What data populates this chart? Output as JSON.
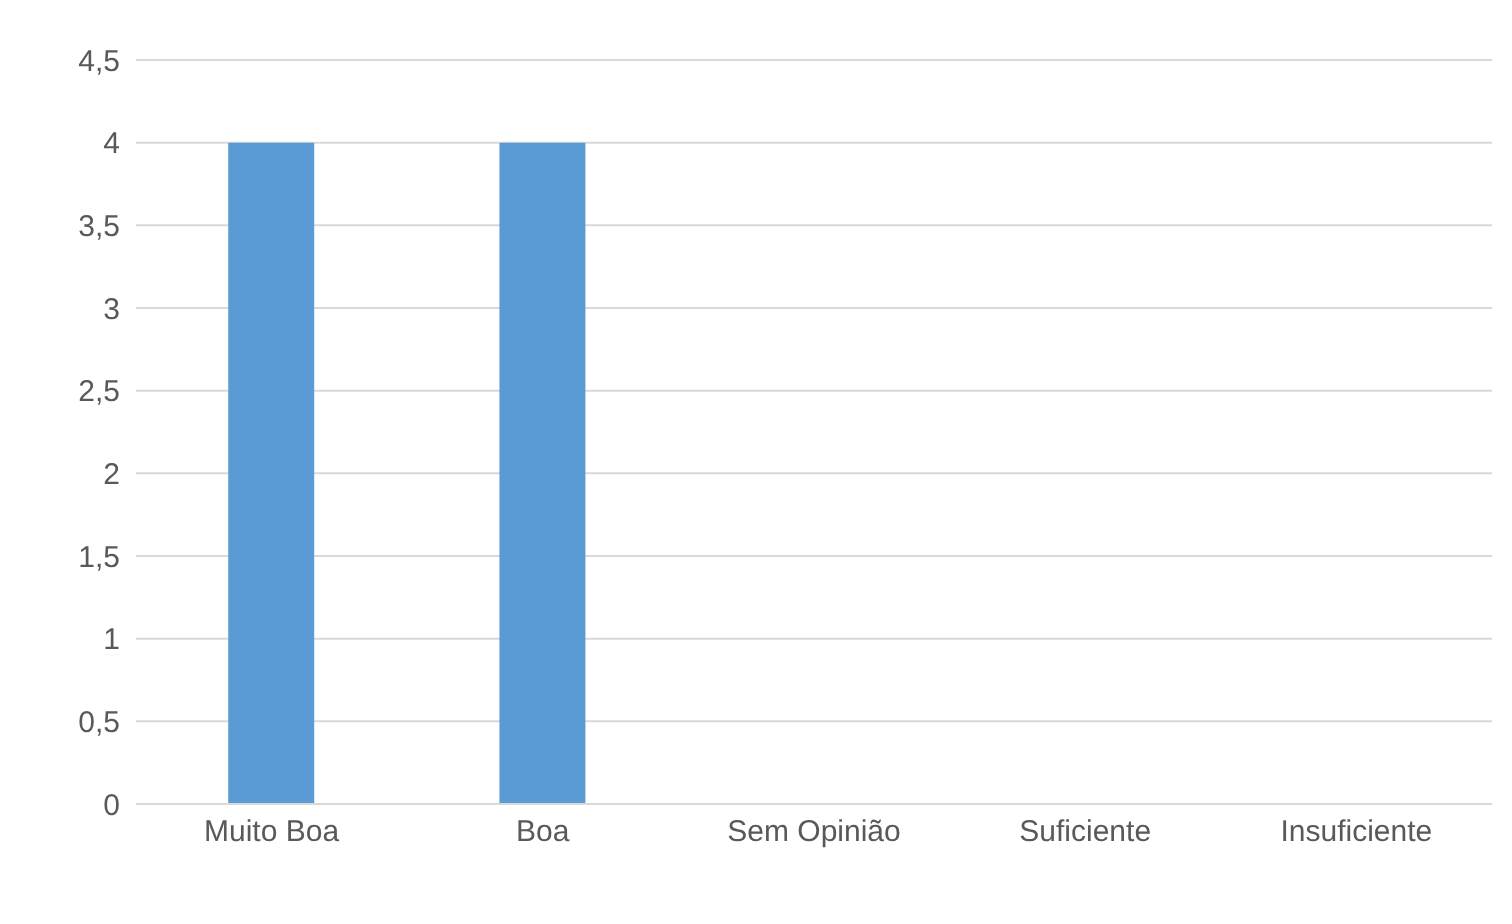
{
  "chart_data": {
    "type": "bar",
    "categories": [
      "Muito Boa",
      "Boa",
      "Sem Opinião",
      "Suficiente",
      "Insuficiente"
    ],
    "values": [
      4,
      4,
      0,
      0,
      0
    ],
    "color": "#5b9bd5",
    "ylim": [
      0,
      4.5
    ],
    "yticks": [
      0,
      {
        "value": 0.5,
        "label": "0,5"
      },
      1,
      {
        "value": 1.5,
        "label": "1,5"
      },
      2,
      {
        "value": 2.5,
        "label": "2,5"
      },
      3,
      {
        "value": 3.5,
        "label": "3,5"
      },
      4,
      {
        "value": 4.5,
        "label": "4,5"
      }
    ],
    "grid": "y"
  }
}
